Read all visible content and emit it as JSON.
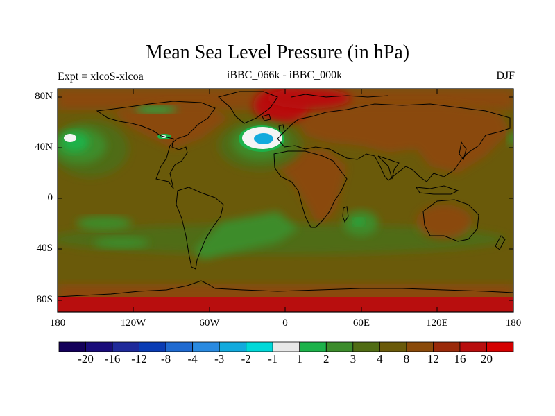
{
  "title": "Mean Sea Level Pressure (in hPa)",
  "left_label": "Expt = xlcoS-xlcoa",
  "center_label": "iBBC_066k - iBBC_000k",
  "right_label": "DJF",
  "lat_ticks": [
    "80N",
    "40N",
    "0",
    "40S",
    "80S"
  ],
  "lon_ticks": [
    "180",
    "120W",
    "60W",
    "0",
    "60E",
    "120E",
    "180"
  ],
  "colorbar": {
    "labels": [
      "-20",
      "-16",
      "-12",
      "-8",
      "-4",
      "-3",
      "-2",
      "-1",
      "1",
      "2",
      "3",
      "4",
      "8",
      "12",
      "16",
      "20"
    ],
    "colors": [
      "#14005a",
      "#1a0c7a",
      "#1f2a9a",
      "#0a3cb4",
      "#1f6ad0",
      "#2a8ae0",
      "#12aadd",
      "#00d8d8",
      "#e8e8e8",
      "#1cb24a",
      "#3c8c2c",
      "#506c14",
      "#6a5a0a",
      "#8a4a0a",
      "#9a2a0a",
      "#b80e0e",
      "#d40000"
    ]
  },
  "map_colors": {
    "ocean": "#6a5a0a",
    "land": "#8a4a0a",
    "high": "#b80e0e",
    "mid_green": "#506c14",
    "green": "#3c8c2c",
    "bright_green": "#1cb24a",
    "cyan": "#12aadd",
    "white": "#f4f4f4"
  }
}
